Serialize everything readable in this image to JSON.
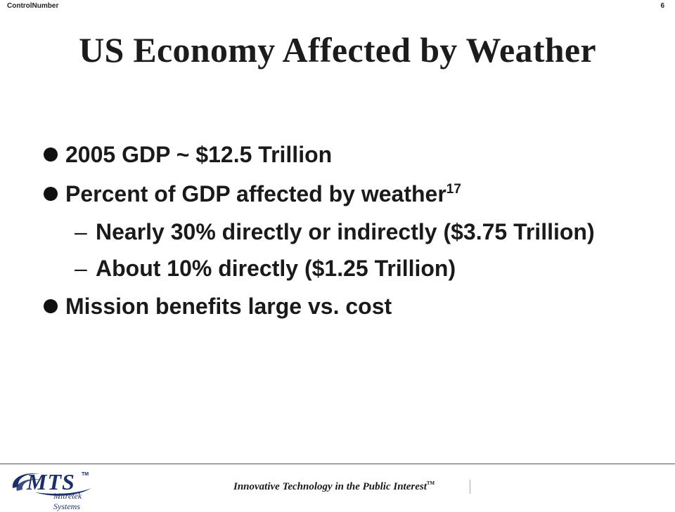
{
  "header": {
    "control_label": "ControlNumber",
    "page_number": "6"
  },
  "slide": {
    "title": "US Economy Affected by Weather",
    "bullets": [
      {
        "text": "2005 GDP ~ $12.5 Trillion"
      },
      {
        "text": "Percent of GDP affected by weather",
        "superscript": "17"
      },
      {
        "text": "Mission benefits large vs. cost"
      }
    ],
    "sub_bullets": [
      {
        "dash": "–",
        "text": "Nearly 30% directly or indirectly ($3.75 Trillion)"
      },
      {
        "dash": "–",
        "text": "About 10% directly ($1.25 Trillion)"
      }
    ]
  },
  "footer": {
    "logo": {
      "mark": "MTS",
      "tm": "TM",
      "subtitle": "Mitretek Systems",
      "icon": "swoosh-icon"
    },
    "tagline": "Innovative Technology in the Public Interest",
    "tagline_tm": "TM"
  },
  "colors": {
    "text": "#1a1a1a",
    "logo_blue": "#1d2f6b",
    "rule": "#555555"
  }
}
